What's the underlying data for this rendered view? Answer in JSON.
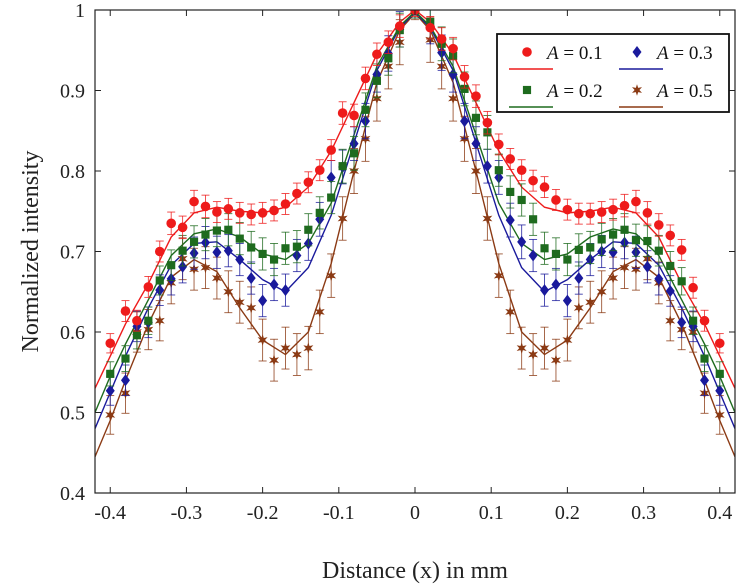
{
  "chart_data": {
    "type": "scatter",
    "title": "",
    "xlabel": "Distance (x) in mm",
    "ylabel": "Normalized intensity",
    "xlim": [
      -0.42,
      0.42
    ],
    "ylim": [
      0.4,
      1.0
    ],
    "xticks": [
      -0.4,
      -0.3,
      -0.2,
      -0.1,
      0,
      0.1,
      0.2,
      0.3,
      0.4
    ],
    "xtick_labels": [
      "-0.4",
      "-0.3",
      "-0.2",
      "-0.1",
      "0",
      "0.1",
      "0.2",
      "0.3",
      "0.4"
    ],
    "yticks": [
      0.4,
      0.5,
      0.6,
      0.7,
      0.8,
      0.9,
      1.0
    ],
    "ytick_labels": [
      "0.4",
      "0.5",
      "0.6",
      "0.7",
      "0.8",
      "0.9",
      "1"
    ],
    "grid": false,
    "legend_position": "top-right",
    "legend_var": "A",
    "x": [
      -0.4,
      -0.38,
      -0.365,
      -0.35,
      -0.335,
      -0.32,
      -0.305,
      -0.29,
      -0.275,
      -0.26,
      -0.245,
      -0.23,
      -0.215,
      -0.2,
      -0.185,
      -0.17,
      -0.155,
      -0.14,
      -0.125,
      -0.11,
      -0.095,
      -0.08,
      -0.065,
      -0.05,
      -0.035,
      -0.02,
      0,
      0.02,
      0.035,
      0.05,
      0.065,
      0.08,
      0.095,
      0.11,
      0.125,
      0.14,
      0.155,
      0.17,
      0.185,
      0.2,
      0.215,
      0.23,
      0.245,
      0.26,
      0.275,
      0.29,
      0.305,
      0.32,
      0.335,
      0.35,
      0.365,
      0.38,
      0.4
    ],
    "series": [
      {
        "name": "A = 0.1",
        "value_label": "0.1",
        "color": "#ee1b1b",
        "marker": "circle",
        "values": [
          0.586,
          0.626,
          0.614,
          0.656,
          0.7,
          0.735,
          0.73,
          0.762,
          0.756,
          0.749,
          0.753,
          0.748,
          0.746,
          0.748,
          0.751,
          0.759,
          0.772,
          0.786,
          0.801,
          0.826,
          0.872,
          0.869,
          0.915,
          0.945,
          0.96,
          0.98,
          1.0,
          0.978,
          0.964,
          0.952,
          0.917,
          0.893,
          0.86,
          0.833,
          0.815,
          0.801,
          0.788,
          0.78,
          0.764,
          0.752,
          0.747,
          0.747,
          0.749,
          0.752,
          0.757,
          0.762,
          0.748,
          0.733,
          0.72,
          0.702,
          0.655,
          0.614,
          0.586
        ],
        "errors": [
          0.012,
          0.013,
          0.013,
          0.013,
          0.013,
          0.014,
          0.014,
          0.014,
          0.014,
          0.013,
          0.013,
          0.013,
          0.013,
          0.013,
          0.013,
          0.013,
          0.013,
          0.013,
          0.013,
          0.013,
          0.014,
          0.014,
          0.014,
          0.014,
          0.014,
          0.014,
          0.008,
          0.014,
          0.014,
          0.014,
          0.014,
          0.014,
          0.014,
          0.013,
          0.013,
          0.013,
          0.013,
          0.013,
          0.013,
          0.013,
          0.013,
          0.013,
          0.013,
          0.013,
          0.014,
          0.014,
          0.014,
          0.014,
          0.013,
          0.013,
          0.013,
          0.013,
          0.012
        ],
        "fit": [
          [
            -0.42,
            0.53
          ],
          [
            -0.4,
            0.57
          ],
          [
            -0.38,
            0.61
          ],
          [
            -0.35,
            0.66
          ],
          [
            -0.32,
            0.718
          ],
          [
            -0.29,
            0.748
          ],
          [
            -0.26,
            0.755
          ],
          [
            -0.23,
            0.75
          ],
          [
            -0.2,
            0.748
          ],
          [
            -0.17,
            0.755
          ],
          [
            -0.14,
            0.78
          ],
          [
            -0.11,
            0.825
          ],
          [
            -0.08,
            0.885
          ],
          [
            -0.05,
            0.945
          ],
          [
            -0.02,
            0.985
          ],
          [
            0,
            1.0
          ],
          [
            0.02,
            0.985
          ],
          [
            0.05,
            0.945
          ],
          [
            0.08,
            0.885
          ],
          [
            0.11,
            0.825
          ],
          [
            0.14,
            0.78
          ],
          [
            0.17,
            0.755
          ],
          [
            0.2,
            0.748
          ],
          [
            0.23,
            0.75
          ],
          [
            0.26,
            0.755
          ],
          [
            0.29,
            0.748
          ],
          [
            0.32,
            0.718
          ],
          [
            0.35,
            0.66
          ],
          [
            0.38,
            0.61
          ],
          [
            0.4,
            0.57
          ],
          [
            0.42,
            0.53
          ]
        ]
      },
      {
        "name": "A = 0.2",
        "value_label": "0.2",
        "color": "#1e6b1e",
        "marker": "square",
        "values": [
          0.548,
          0.567,
          0.596,
          0.614,
          0.664,
          0.683,
          0.701,
          0.712,
          0.721,
          0.726,
          0.727,
          0.716,
          0.705,
          0.697,
          0.69,
          0.704,
          0.706,
          0.727,
          0.748,
          0.767,
          0.806,
          0.822,
          0.876,
          0.912,
          0.94,
          0.975,
          1.0,
          0.985,
          0.958,
          0.943,
          0.902,
          0.866,
          0.848,
          0.801,
          0.774,
          0.764,
          0.74,
          0.704,
          0.697,
          0.69,
          0.702,
          0.705,
          0.715,
          0.721,
          0.727,
          0.714,
          0.713,
          0.701,
          0.682,
          0.663,
          0.614,
          0.567,
          0.548
        ],
        "errors": [
          0.015,
          0.016,
          0.017,
          0.017,
          0.018,
          0.019,
          0.019,
          0.02,
          0.02,
          0.02,
          0.02,
          0.02,
          0.02,
          0.02,
          0.02,
          0.02,
          0.02,
          0.02,
          0.02,
          0.02,
          0.021,
          0.021,
          0.021,
          0.021,
          0.021,
          0.021,
          0.01,
          0.021,
          0.021,
          0.021,
          0.021,
          0.021,
          0.021,
          0.02,
          0.02,
          0.02,
          0.02,
          0.02,
          0.02,
          0.02,
          0.02,
          0.02,
          0.02,
          0.02,
          0.02,
          0.02,
          0.019,
          0.019,
          0.018,
          0.017,
          0.017,
          0.016,
          0.015
        ],
        "fit": [
          [
            -0.42,
            0.5
          ],
          [
            -0.4,
            0.545
          ],
          [
            -0.38,
            0.585
          ],
          [
            -0.35,
            0.64
          ],
          [
            -0.32,
            0.695
          ],
          [
            -0.29,
            0.722
          ],
          [
            -0.26,
            0.728
          ],
          [
            -0.23,
            0.718
          ],
          [
            -0.2,
            0.697
          ],
          [
            -0.17,
            0.69
          ],
          [
            -0.14,
            0.71
          ],
          [
            -0.11,
            0.76
          ],
          [
            -0.08,
            0.845
          ],
          [
            -0.05,
            0.93
          ],
          [
            -0.02,
            0.98
          ],
          [
            0,
            0.998
          ],
          [
            0.02,
            0.98
          ],
          [
            0.05,
            0.93
          ],
          [
            0.08,
            0.845
          ],
          [
            0.11,
            0.76
          ],
          [
            0.14,
            0.71
          ],
          [
            0.17,
            0.69
          ],
          [
            0.2,
            0.697
          ],
          [
            0.23,
            0.718
          ],
          [
            0.26,
            0.728
          ],
          [
            0.29,
            0.722
          ],
          [
            0.32,
            0.695
          ],
          [
            0.35,
            0.64
          ],
          [
            0.38,
            0.585
          ],
          [
            0.4,
            0.545
          ],
          [
            0.42,
            0.5
          ]
        ]
      },
      {
        "name": "A = 0.3",
        "value_label": "0.3",
        "color": "#1a1a9c",
        "marker": "diamond",
        "values": [
          0.527,
          0.54,
          0.607,
          0.612,
          0.652,
          0.666,
          0.681,
          0.698,
          0.711,
          0.699,
          0.701,
          0.69,
          0.667,
          0.639,
          0.659,
          0.652,
          0.695,
          0.71,
          0.74,
          0.792,
          0.805,
          0.834,
          0.862,
          0.92,
          0.946,
          0.976,
          1.0,
          0.98,
          0.947,
          0.92,
          0.862,
          0.834,
          0.806,
          0.792,
          0.739,
          0.712,
          0.695,
          0.652,
          0.659,
          0.639,
          0.667,
          0.69,
          0.7,
          0.699,
          0.711,
          0.699,
          0.681,
          0.666,
          0.651,
          0.612,
          0.607,
          0.54,
          0.527
        ],
        "errors": [
          0.018,
          0.019,
          0.019,
          0.019,
          0.019,
          0.02,
          0.02,
          0.02,
          0.02,
          0.02,
          0.02,
          0.02,
          0.02,
          0.02,
          0.02,
          0.02,
          0.02,
          0.021,
          0.021,
          0.021,
          0.021,
          0.021,
          0.022,
          0.022,
          0.022,
          0.022,
          0.01,
          0.022,
          0.022,
          0.022,
          0.022,
          0.021,
          0.021,
          0.021,
          0.021,
          0.021,
          0.02,
          0.02,
          0.02,
          0.02,
          0.02,
          0.02,
          0.02,
          0.02,
          0.02,
          0.02,
          0.02,
          0.02,
          0.019,
          0.019,
          0.019,
          0.019,
          0.018
        ],
        "fit": [
          [
            -0.42,
            0.48
          ],
          [
            -0.4,
            0.525
          ],
          [
            -0.38,
            0.57
          ],
          [
            -0.35,
            0.63
          ],
          [
            -0.32,
            0.683
          ],
          [
            -0.29,
            0.71
          ],
          [
            -0.26,
            0.712
          ],
          [
            -0.23,
            0.69
          ],
          [
            -0.2,
            0.665
          ],
          [
            -0.17,
            0.65
          ],
          [
            -0.14,
            0.68
          ],
          [
            -0.11,
            0.745
          ],
          [
            -0.08,
            0.835
          ],
          [
            -0.05,
            0.925
          ],
          [
            -0.02,
            0.978
          ],
          [
            0,
            0.997
          ],
          [
            0.02,
            0.978
          ],
          [
            0.05,
            0.925
          ],
          [
            0.08,
            0.835
          ],
          [
            0.11,
            0.745
          ],
          [
            0.14,
            0.68
          ],
          [
            0.17,
            0.65
          ],
          [
            0.2,
            0.665
          ],
          [
            0.23,
            0.69
          ],
          [
            0.26,
            0.712
          ],
          [
            0.29,
            0.71
          ],
          [
            0.32,
            0.683
          ],
          [
            0.35,
            0.63
          ],
          [
            0.38,
            0.57
          ],
          [
            0.4,
            0.525
          ],
          [
            0.42,
            0.48
          ]
        ]
      },
      {
        "name": "A = 0.5",
        "value_label": "0.5",
        "color": "#8b3a14",
        "marker": "star",
        "values": [
          0.497,
          0.524,
          0.6,
          0.603,
          0.614,
          0.661,
          0.691,
          0.678,
          0.68,
          0.667,
          0.65,
          0.637,
          0.63,
          0.59,
          0.565,
          0.58,
          0.572,
          0.58,
          0.625,
          0.67,
          0.741,
          0.8,
          0.84,
          0.89,
          0.93,
          0.96,
          1.0,
          0.963,
          0.93,
          0.89,
          0.84,
          0.8,
          0.741,
          0.67,
          0.625,
          0.58,
          0.572,
          0.58,
          0.565,
          0.59,
          0.63,
          0.637,
          0.65,
          0.667,
          0.68,
          0.678,
          0.691,
          0.661,
          0.614,
          0.603,
          0.6,
          0.524,
          0.497
        ],
        "errors": [
          0.024,
          0.025,
          0.025,
          0.025,
          0.025,
          0.026,
          0.026,
          0.026,
          0.026,
          0.026,
          0.026,
          0.026,
          0.026,
          0.026,
          0.026,
          0.026,
          0.026,
          0.027,
          0.027,
          0.027,
          0.027,
          0.028,
          0.028,
          0.028,
          0.028,
          0.028,
          0.012,
          0.028,
          0.028,
          0.028,
          0.028,
          0.028,
          0.027,
          0.027,
          0.027,
          0.026,
          0.026,
          0.026,
          0.026,
          0.026,
          0.026,
          0.026,
          0.026,
          0.026,
          0.026,
          0.026,
          0.026,
          0.026,
          0.025,
          0.025,
          0.025,
          0.025,
          0.024
        ],
        "fit": [
          [
            -0.42,
            0.445
          ],
          [
            -0.4,
            0.49
          ],
          [
            -0.38,
            0.54
          ],
          [
            -0.35,
            0.61
          ],
          [
            -0.32,
            0.668
          ],
          [
            -0.29,
            0.69
          ],
          [
            -0.26,
            0.675
          ],
          [
            -0.23,
            0.63
          ],
          [
            -0.2,
            0.59
          ],
          [
            -0.17,
            0.572
          ],
          [
            -0.14,
            0.6
          ],
          [
            -0.11,
            0.685
          ],
          [
            -0.08,
            0.8
          ],
          [
            -0.05,
            0.91
          ],
          [
            -0.02,
            0.975
          ],
          [
            0,
            0.996
          ],
          [
            0.02,
            0.975
          ],
          [
            0.05,
            0.91
          ],
          [
            0.08,
            0.8
          ],
          [
            0.11,
            0.685
          ],
          [
            0.14,
            0.6
          ],
          [
            0.17,
            0.572
          ],
          [
            0.2,
            0.59
          ],
          [
            0.23,
            0.63
          ],
          [
            0.26,
            0.675
          ],
          [
            0.29,
            0.69
          ],
          [
            0.32,
            0.668
          ],
          [
            0.35,
            0.61
          ],
          [
            0.38,
            0.54
          ],
          [
            0.4,
            0.49
          ],
          [
            0.42,
            0.445
          ]
        ]
      }
    ]
  }
}
